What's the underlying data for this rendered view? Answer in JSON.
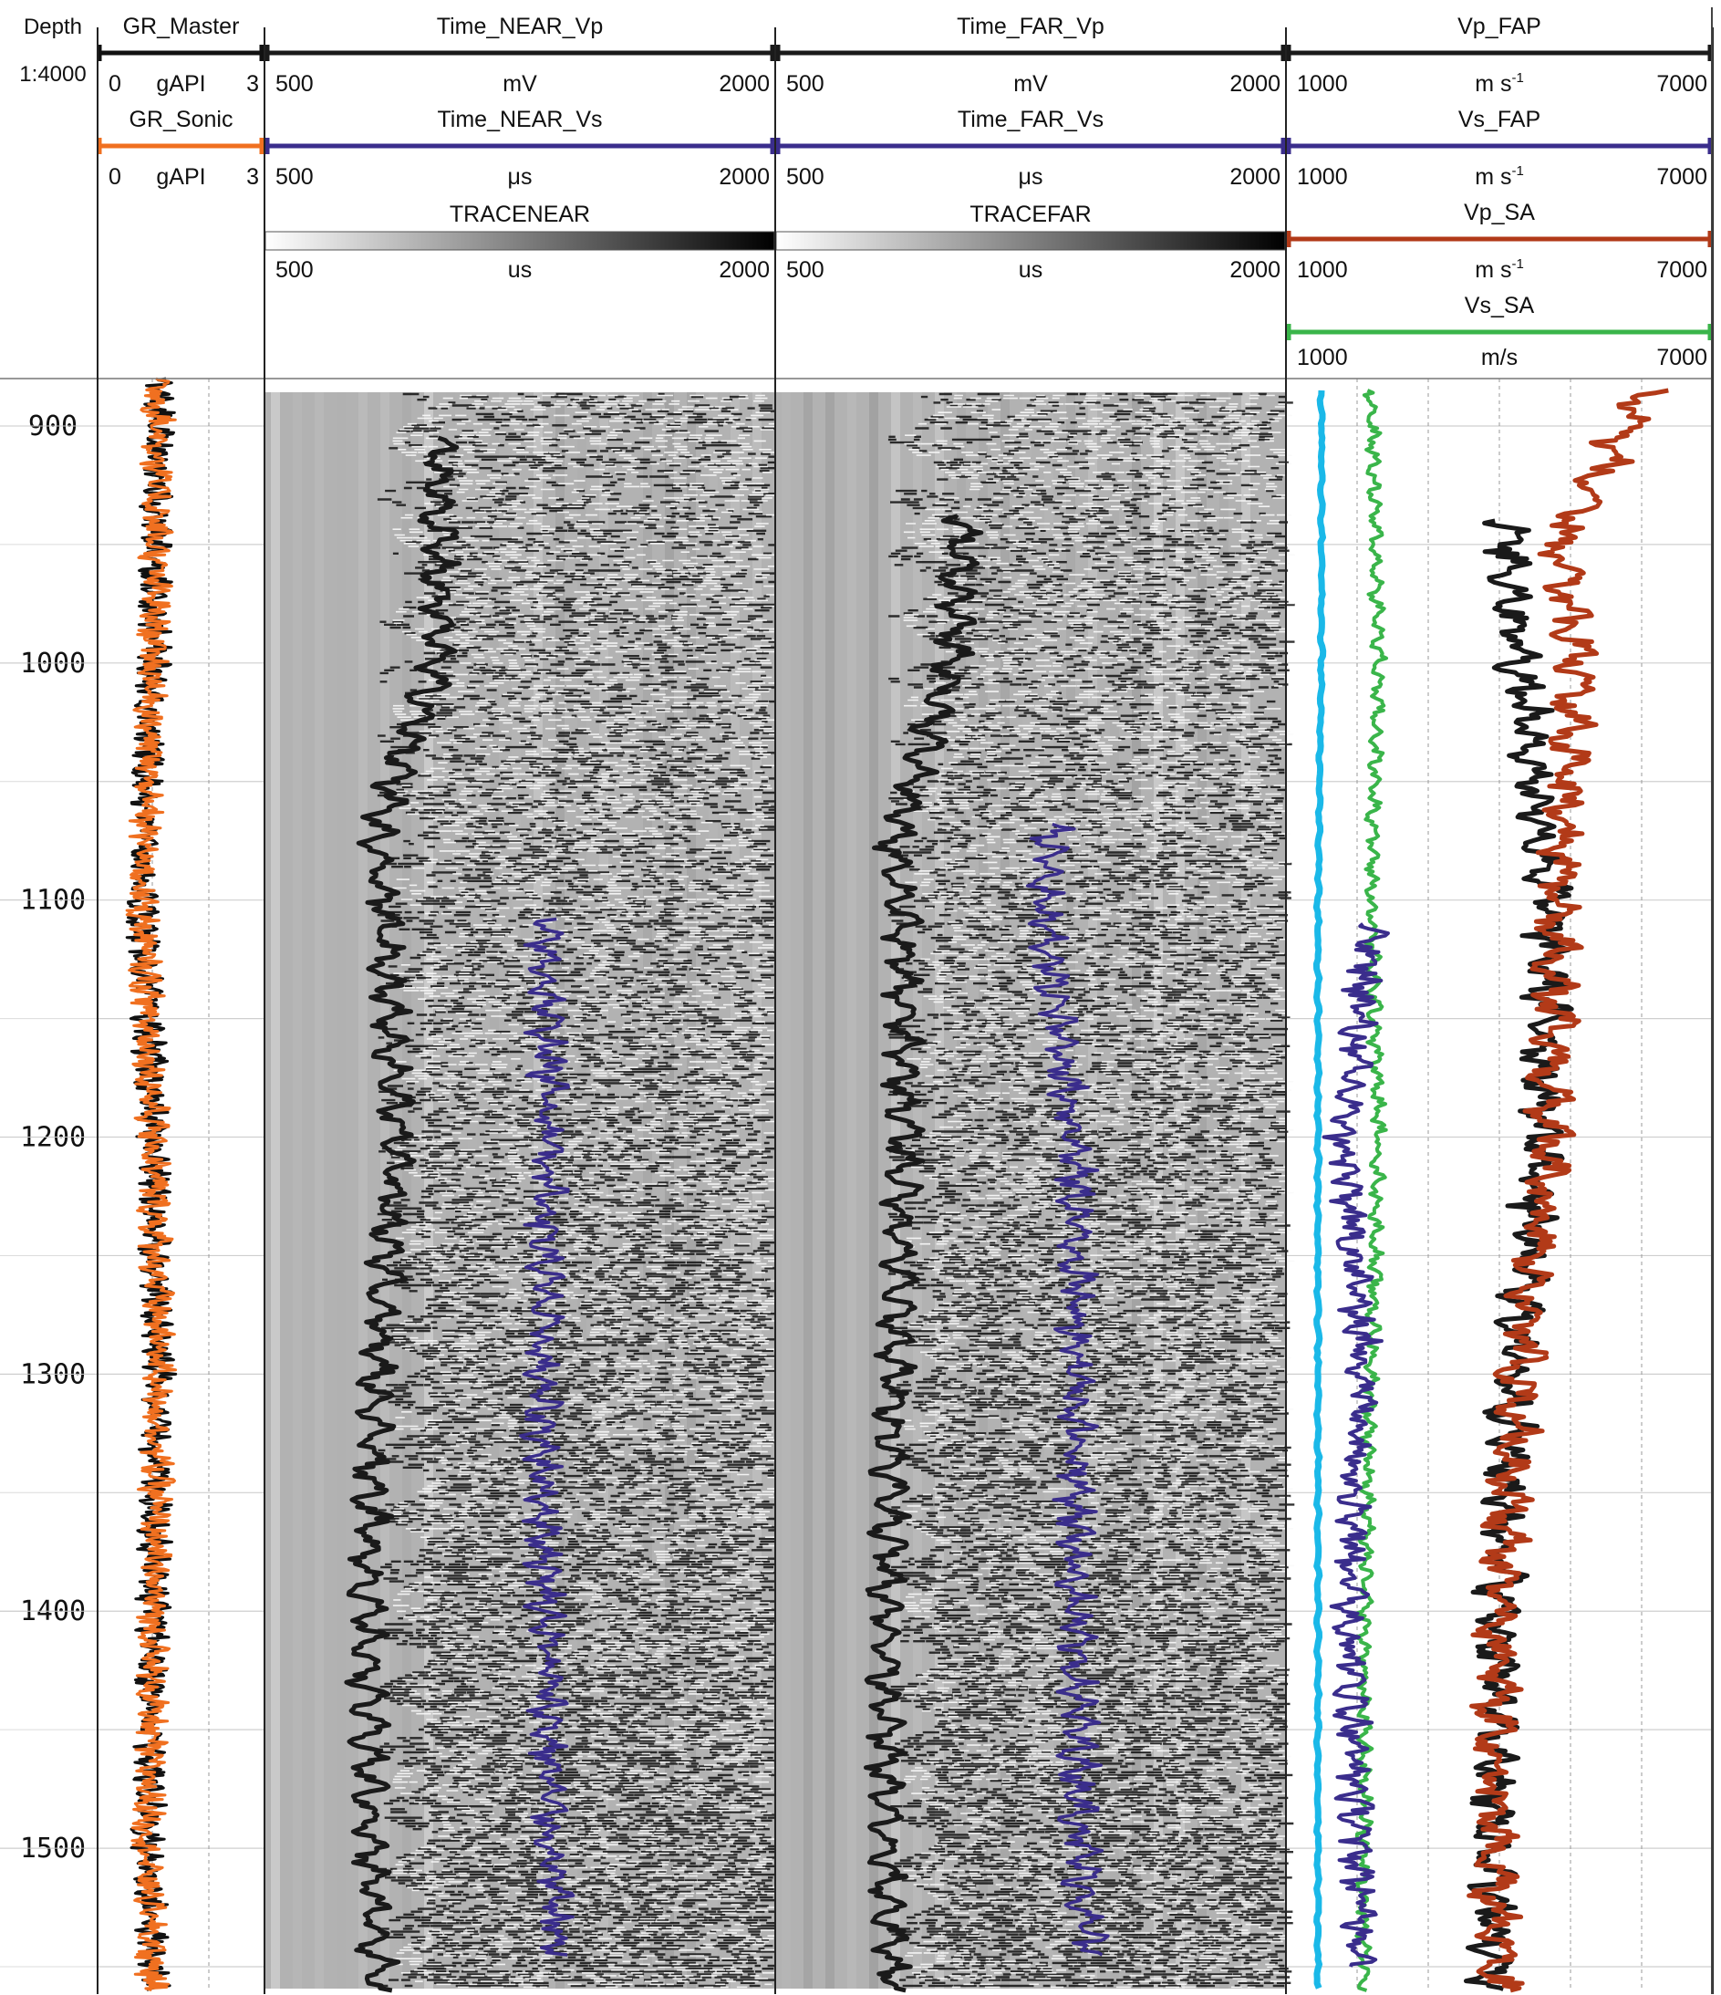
{
  "chart_data": {
    "type": "line",
    "depth_track": {
      "label": "Depth",
      "scale": "1:4000",
      "range": [
        880,
        1560
      ],
      "ticks": [
        900,
        1000,
        1100,
        1200,
        1300,
        1400,
        1500
      ]
    },
    "tracks": [
      {
        "id": "gr",
        "curves": [
          {
            "name": "GR_Master",
            "min_label": "0",
            "max_label": "3",
            "unit": "gAPI",
            "color": "#111111",
            "range": [
              0,
              3
            ]
          },
          {
            "name": "GR_Sonic",
            "min_label": "0",
            "max_label": "3",
            "unit": "gAPI",
            "color": "#f07020",
            "range": [
              0,
              3
            ]
          }
        ]
      },
      {
        "id": "near",
        "curves": [
          {
            "name": "Time_NEAR_Vp",
            "min_label": "500",
            "max_label": "2000",
            "unit": "mV",
            "color": "#1a1a1a",
            "range": [
              500,
              2000
            ]
          },
          {
            "name": "Time_NEAR_Vs",
            "min_label": "500",
            "max_label": "2000",
            "unit": "μs",
            "color": "#3a2d8c",
            "range": [
              500,
              2000
            ]
          }
        ],
        "image": {
          "name": "TRACENEAR",
          "min_label": "500",
          "max_label": "2000",
          "unit": "us"
        }
      },
      {
        "id": "far",
        "curves": [
          {
            "name": "Time_FAR_Vp",
            "min_label": "500",
            "max_label": "2000",
            "unit": "mV",
            "color": "#1a1a1a",
            "range": [
              500,
              2000
            ]
          },
          {
            "name": "Time_FAR_Vs",
            "min_label": "500",
            "max_label": "2000",
            "unit": "μs",
            "color": "#3a2d8c",
            "range": [
              500,
              2000
            ]
          }
        ],
        "image": {
          "name": "TRACEFAR",
          "min_label": "500",
          "max_label": "2000",
          "unit": "us"
        }
      },
      {
        "id": "vel",
        "curves": [
          {
            "name": "Vp_FAP",
            "min_label": "1000",
            "max_label": "7000",
            "unit": "m s",
            "unit_sup": "-1",
            "color": "#1a1a1a",
            "range": [
              1000,
              7000
            ]
          },
          {
            "name": "Vs_FAP",
            "min_label": "1000",
            "max_label": "7000",
            "unit": "m s",
            "unit_sup": "-1",
            "color": "#3a2d8c",
            "range": [
              1000,
              7000
            ]
          },
          {
            "name": "Vp_SA",
            "min_label": "1000",
            "max_label": "7000",
            "unit": "m s",
            "unit_sup": "-1",
            "color": "#b23a18",
            "range": [
              1000,
              7000
            ]
          },
          {
            "name": "Vs_SA",
            "min_label": "1000",
            "max_label": "7000",
            "unit": "m/s",
            "color": "#3ab54a",
            "range": [
              1000,
              7000
            ]
          }
        ],
        "extra_curve_color": "#1ab8e8"
      }
    ],
    "series_profiles": {
      "GR_Master": {
        "depth": [
          880,
          1000,
          1100,
          1200,
          1300,
          1400,
          1500,
          1560
        ],
        "value": [
          1.1,
          1.0,
          0.8,
          1.0,
          1.1,
          1.0,
          0.9,
          1.0
        ]
      },
      "GR_Sonic": {
        "depth": [
          880,
          1000,
          1100,
          1200,
          1300,
          1400,
          1500,
          1560
        ],
        "value": [
          1.1,
          1.0,
          0.8,
          1.0,
          1.1,
          1.0,
          0.9,
          1.0
        ]
      },
      "Time_NEAR_Vp": {
        "depth": [
          905,
          1000,
          1075,
          1100,
          1200,
          1300,
          1400,
          1500,
          1560
        ],
        "value": [
          1010,
          1010,
          820,
          850,
          890,
          830,
          800,
          810,
          840
        ]
      },
      "Time_NEAR_Vs": {
        "depth": [
          1108,
          1200,
          1300,
          1400,
          1500,
          1545
        ],
        "value": [
          1320,
          1340,
          1310,
          1330,
          1340,
          1360
        ]
      },
      "Time_FAR_Vp": {
        "depth": [
          938,
          1000,
          1075,
          1100,
          1200,
          1300,
          1400,
          1500,
          1560
        ],
        "value": [
          1050,
          1020,
          850,
          870,
          880,
          850,
          830,
          820,
          850
        ]
      },
      "Time_FAR_Vs": {
        "depth": [
          1068,
          1100,
          1200,
          1300,
          1400,
          1500,
          1545
        ],
        "value": [
          1320,
          1280,
          1380,
          1390,
          1380,
          1400,
          1420
        ]
      },
      "Vp_FAP": {
        "depth": [
          940,
          1000,
          1100,
          1200,
          1300,
          1400,
          1500,
          1560
        ],
        "value": [
          4100,
          4300,
          4700,
          4600,
          4200,
          4000,
          3900,
          3900
        ]
      },
      "Vs_FAP": {
        "depth": [
          1110,
          1200,
          1300,
          1400,
          1500,
          1550
        ],
        "value": [
          2200,
          1800,
          2100,
          1900,
          2000,
          2100
        ]
      },
      "Vp_SA": {
        "depth": [
          885,
          950,
          1000,
          1100,
          1200,
          1300,
          1400,
          1500,
          1560
        ],
        "value": [
          6100,
          4800,
          5100,
          4800,
          4700,
          4300,
          4000,
          3900,
          4000
        ]
      },
      "Vs_SA": {
        "depth": [
          885,
          1000,
          1100,
          1200,
          1300,
          1400,
          1500,
          1560
        ],
        "value": [
          2200,
          2300,
          2200,
          2300,
          2200,
          2100,
          2100,
          2100
        ]
      },
      "Vs_extra": {
        "depth": [
          885,
          1000,
          1100,
          1200,
          1300,
          1400,
          1500,
          1560
        ],
        "value": [
          1500,
          1500,
          1450,
          1450,
          1450,
          1450,
          1450,
          1450
        ]
      }
    },
    "grid": true
  }
}
